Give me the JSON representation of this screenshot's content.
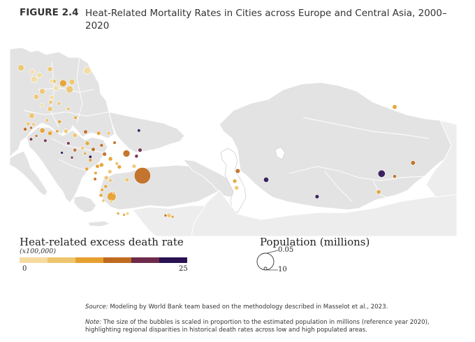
{
  "figure": {
    "label": "FIGURE 2.4",
    "title": "Heat-Related Mortality Rates in Cities across Europe and Central Asia, 2000–2020"
  },
  "colors": {
    "land": "#e3e3e3",
    "border": "#ffffff",
    "sea": "#ffffff",
    "scale": [
      "#f5dba0",
      "#eec56e",
      "#e6a030",
      "#c06a1e",
      "#6e2a4a",
      "#2a1252"
    ]
  },
  "legend_color": {
    "title": "Heat-related excess death rate",
    "subtitle": "(x100,000)",
    "min_label": "0",
    "max_label": "25",
    "domain": [
      0,
      25
    ]
  },
  "legend_size": {
    "title": "Population (millions)",
    "small_label": "0.05",
    "large_label": "10"
  },
  "cities": [
    {
      "lon": 8.4,
      "lat": 57.0,
      "pop": 1.5,
      "rate": 5
    },
    {
      "lon": 10.3,
      "lat": 56.4,
      "pop": 0.8,
      "rate": 4
    },
    {
      "lon": 11.5,
      "lat": 55.9,
      "pop": 1.0,
      "rate": 4
    },
    {
      "lon": 13.3,
      "lat": 56.8,
      "pop": 1.0,
      "rate": 6
    },
    {
      "lon": 19.6,
      "lat": 56.6,
      "pop": 2.0,
      "rate": 4
    },
    {
      "lon": 13.5,
      "lat": 55.0,
      "pop": 0.5,
      "rate": 4
    },
    {
      "lon": 10.6,
      "lat": 55.3,
      "pop": 1.5,
      "rate": 4
    },
    {
      "lon": 14.0,
      "lat": 55.0,
      "pop": 0.7,
      "rate": 5
    },
    {
      "lon": 15.5,
      "lat": 54.7,
      "pop": 1.8,
      "rate": 9
    },
    {
      "lon": 17.0,
      "lat": 54.9,
      "pop": 1.2,
      "rate": 6
    },
    {
      "lon": 16.6,
      "lat": 53.8,
      "pop": 2.0,
      "rate": 7
    },
    {
      "lon": 14.3,
      "lat": 54.0,
      "pop": 1.0,
      "rate": 4
    },
    {
      "lon": 12.0,
      "lat": 53.5,
      "pop": 1.2,
      "rate": 5
    },
    {
      "lon": 11.0,
      "lat": 52.7,
      "pop": 1.0,
      "rate": 6
    },
    {
      "lon": 13.6,
      "lat": 52.6,
      "pop": 0.8,
      "rate": 4
    },
    {
      "lon": 13.4,
      "lat": 51.9,
      "pop": 0.6,
      "rate": 5
    },
    {
      "lon": 11.9,
      "lat": 51.5,
      "pop": 0.5,
      "rate": 4
    },
    {
      "lon": 14.8,
      "lat": 51.7,
      "pop": 0.5,
      "rate": 5
    },
    {
      "lon": 13.3,
      "lat": 50.9,
      "pop": 1.0,
      "rate": 6
    },
    {
      "lon": 16.4,
      "lat": 50.9,
      "pop": 0.5,
      "rate": 5
    },
    {
      "lon": 10.2,
      "lat": 49.9,
      "pop": 1.2,
      "rate": 5
    },
    {
      "lon": 12.8,
      "lat": 49.2,
      "pop": 0.5,
      "rate": 8
    },
    {
      "lon": 17.6,
      "lat": 49.6,
      "pop": 0.4,
      "rate": 9
    },
    {
      "lon": 14.9,
      "lat": 49.0,
      "pop": 0.5,
      "rate": 10
    },
    {
      "lon": 9.6,
      "lat": 48.7,
      "pop": 0.6,
      "rate": 6
    },
    {
      "lon": 10.5,
      "lat": 48.6,
      "pop": 0.4,
      "rate": 8
    },
    {
      "lon": 10.1,
      "lat": 48.1,
      "pop": 0.3,
      "rate": 16
    },
    {
      "lon": 9.1,
      "lat": 47.9,
      "pop": 0.5,
      "rate": 13
    },
    {
      "lon": 12.0,
      "lat": 47.7,
      "pop": 1.0,
      "rate": 12
    },
    {
      "lon": 13.3,
      "lat": 47.3,
      "pop": 0.8,
      "rate": 9
    },
    {
      "lon": 11.0,
      "lat": 46.9,
      "pop": 0.3,
      "rate": 13
    },
    {
      "lon": 10.1,
      "lat": 46.4,
      "pop": 0.4,
      "rate": 18
    },
    {
      "lon": 12.5,
      "lat": 46.2,
      "pop": 0.4,
      "rate": 20
    },
    {
      "lon": 14.5,
      "lat": 47.6,
      "pop": 0.4,
      "rate": 10
    },
    {
      "lon": 16.0,
      "lat": 47.6,
      "pop": 0.7,
      "rate": 8
    },
    {
      "lon": 17.5,
      "lat": 47.0,
      "pop": 0.8,
      "rate": 6
    },
    {
      "lon": 19.3,
      "lat": 47.5,
      "pop": 0.6,
      "rate": 13
    },
    {
      "lon": 21.5,
      "lat": 47.3,
      "pop": 0.6,
      "rate": 12
    },
    {
      "lon": 23.2,
      "lat": 47.3,
      "pop": 0.5,
      "rate": 7
    },
    {
      "lon": 24.2,
      "lat": 45.9,
      "pop": 0.4,
      "rate": 16
    },
    {
      "lon": 28.3,
      "lat": 47.7,
      "pop": 0.4,
      "rate": 23
    },
    {
      "lon": 28.5,
      "lat": 44.8,
      "pop": 0.6,
      "rate": 17
    },
    {
      "lon": 19.6,
      "lat": 45.8,
      "pop": 0.7,
      "rate": 12
    },
    {
      "lon": 20.6,
      "lat": 44.9,
      "pop": 0.6,
      "rate": 14
    },
    {
      "lon": 22.0,
      "lat": 45.5,
      "pop": 0.5,
      "rate": 13
    },
    {
      "lon": 18.8,
      "lat": 45.1,
      "pop": 0.5,
      "rate": 8
    },
    {
      "lon": 16.4,
      "lat": 45.8,
      "pop": 0.4,
      "rate": 20
    },
    {
      "lon": 17.5,
      "lat": 44.8,
      "pop": 0.5,
      "rate": 16
    },
    {
      "lon": 19.2,
      "lat": 44.3,
      "pop": 0.3,
      "rate": 12
    },
    {
      "lon": 20.1,
      "lat": 43.8,
      "pop": 0.4,
      "rate": 22
    },
    {
      "lon": 15.3,
      "lat": 44.4,
      "pop": 0.3,
      "rate": 21
    },
    {
      "lon": 17.0,
      "lat": 43.7,
      "pop": 0.3,
      "rate": 20
    },
    {
      "lon": 22.5,
      "lat": 44.2,
      "pop": 0.6,
      "rate": 15
    },
    {
      "lon": 23.5,
      "lat": 43.5,
      "pop": 0.7,
      "rate": 10
    },
    {
      "lon": 26.2,
      "lat": 44.3,
      "pop": 1.8,
      "rate": 13
    },
    {
      "lon": 27.9,
      "lat": 43.9,
      "pop": 0.5,
      "rate": 20
    },
    {
      "lon": 24.6,
      "lat": 42.8,
      "pop": 0.5,
      "rate": 8
    },
    {
      "lon": 22.0,
      "lat": 42.6,
      "pop": 0.7,
      "rate": 9
    },
    {
      "lon": 20.1,
      "lat": 43.3,
      "pop": 0.5,
      "rate": 11
    },
    {
      "lon": 21.3,
      "lat": 42.4,
      "pop": 0.6,
      "rate": 10
    },
    {
      "lon": 19.5,
      "lat": 42.0,
      "pop": 0.5,
      "rate": 12
    },
    {
      "lon": 23.4,
      "lat": 41.6,
      "pop": 0.6,
      "rate": 8
    },
    {
      "lon": 25.0,
      "lat": 42.3,
      "pop": 0.6,
      "rate": 10
    },
    {
      "lon": 27.5,
      "lat": 42.4,
      "pop": 0.6,
      "rate": 8
    },
    {
      "lon": 21.0,
      "lat": 41.4,
      "pop": 0.4,
      "rate": 9
    },
    {
      "lon": 22.8,
      "lat": 40.7,
      "pop": 0.7,
      "rate": 5
    },
    {
      "lon": 20.9,
      "lat": 40.5,
      "pop": 0.4,
      "rate": 13
    },
    {
      "lon": 23.5,
      "lat": 40.3,
      "pop": 0.5,
      "rate": 6
    },
    {
      "lon": 26.3,
      "lat": 40.4,
      "pop": 0.7,
      "rate": 6
    },
    {
      "lon": 28.9,
      "lat": 41.0,
      "pop": 10.0,
      "rate": 13
    },
    {
      "lon": 22.7,
      "lat": 39.4,
      "pop": 0.5,
      "rate": 9
    },
    {
      "lon": 22.1,
      "lat": 38.9,
      "pop": 0.4,
      "rate": 11
    },
    {
      "lon": 21.9,
      "lat": 38.1,
      "pop": 0.5,
      "rate": 9
    },
    {
      "lon": 23.7,
      "lat": 37.9,
      "pop": 3.0,
      "rate": 12
    },
    {
      "lon": 24.1,
      "lat": 38.5,
      "pop": 0.3,
      "rate": 6
    },
    {
      "lon": 22.3,
      "lat": 37.3,
      "pop": 0.4,
      "rate": 8
    },
    {
      "lon": 23.6,
      "lat": 37.2,
      "pop": 0.3,
      "rate": 5
    },
    {
      "lon": 24.8,
      "lat": 35.4,
      "pop": 0.3,
      "rate": 10
    },
    {
      "lon": 25.8,
      "lat": 35.2,
      "pop": 0.3,
      "rate": 12
    },
    {
      "lon": 26.4,
      "lat": 35.4,
      "pop": 0.3,
      "rate": 8
    },
    {
      "lon": 32.8,
      "lat": 35.1,
      "pop": 0.3,
      "rate": 14
    },
    {
      "lon": 33.4,
      "lat": 35.1,
      "pop": 0.7,
      "rate": 7
    },
    {
      "lon": 34.0,
      "lat": 34.9,
      "pop": 0.3,
      "rate": 10
    },
    {
      "lon": 44.5,
      "lat": 40.2,
      "pop": 0.6,
      "rate": 9
    },
    {
      "lon": 45.0,
      "lat": 41.7,
      "pop": 0.8,
      "rate": 13
    },
    {
      "lon": 44.8,
      "lat": 39.2,
      "pop": 0.7,
      "rate": 7
    },
    {
      "lon": 49.8,
      "lat": 40.4,
      "pop": 1.0,
      "rate": 24
    },
    {
      "lon": 58.4,
      "lat": 37.9,
      "pop": 0.6,
      "rate": 23
    },
    {
      "lon": 69.3,
      "lat": 41.3,
      "pop": 2.0,
      "rate": 22
    },
    {
      "lon": 71.5,
      "lat": 40.9,
      "pop": 0.5,
      "rate": 14
    },
    {
      "lon": 74.6,
      "lat": 42.9,
      "pop": 0.8,
      "rate": 16
    },
    {
      "lon": 68.8,
      "lat": 38.6,
      "pop": 0.7,
      "rate": 12
    },
    {
      "lon": 71.5,
      "lat": 51.2,
      "pop": 0.8,
      "rate": 12
    }
  ],
  "source": {
    "label": "Source:",
    "text": "Modeling by World Bank team based on the methodology described in Masselot et al., 2023."
  },
  "note": {
    "label": "Note:",
    "text": "The size of the bubbles is scaled in proportion to the estimated population in millions (reference year 2020), highlighting regional disparities in historical death rates across low and high populated areas."
  }
}
